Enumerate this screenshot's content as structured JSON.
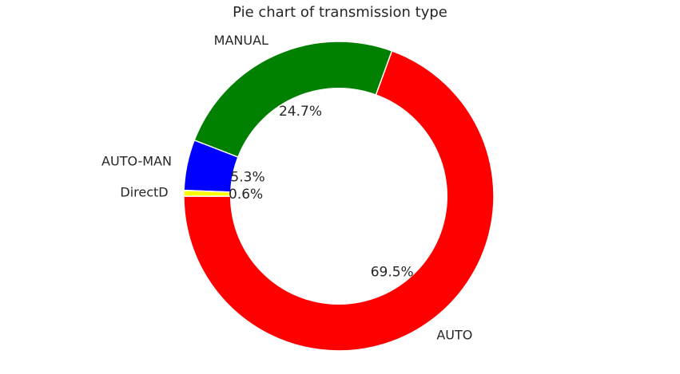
{
  "chart_data": {
    "type": "pie",
    "title": "Pie chart of transmission type",
    "donut": true,
    "slices": [
      {
        "label": "AUTO",
        "value": 69.5,
        "pct_label": "69.5%",
        "color": "#ff0000"
      },
      {
        "label": "MANUAL",
        "value": 24.7,
        "pct_label": "24.7%",
        "color": "#008000"
      },
      {
        "label": "AUTO-MAN",
        "value": 5.3,
        "pct_label": "5.3%",
        "color": "#0000ff"
      },
      {
        "label": "DirectD",
        "value": 0.6,
        "pct_label": "0.6%",
        "color": "#ffff00"
      }
    ]
  }
}
